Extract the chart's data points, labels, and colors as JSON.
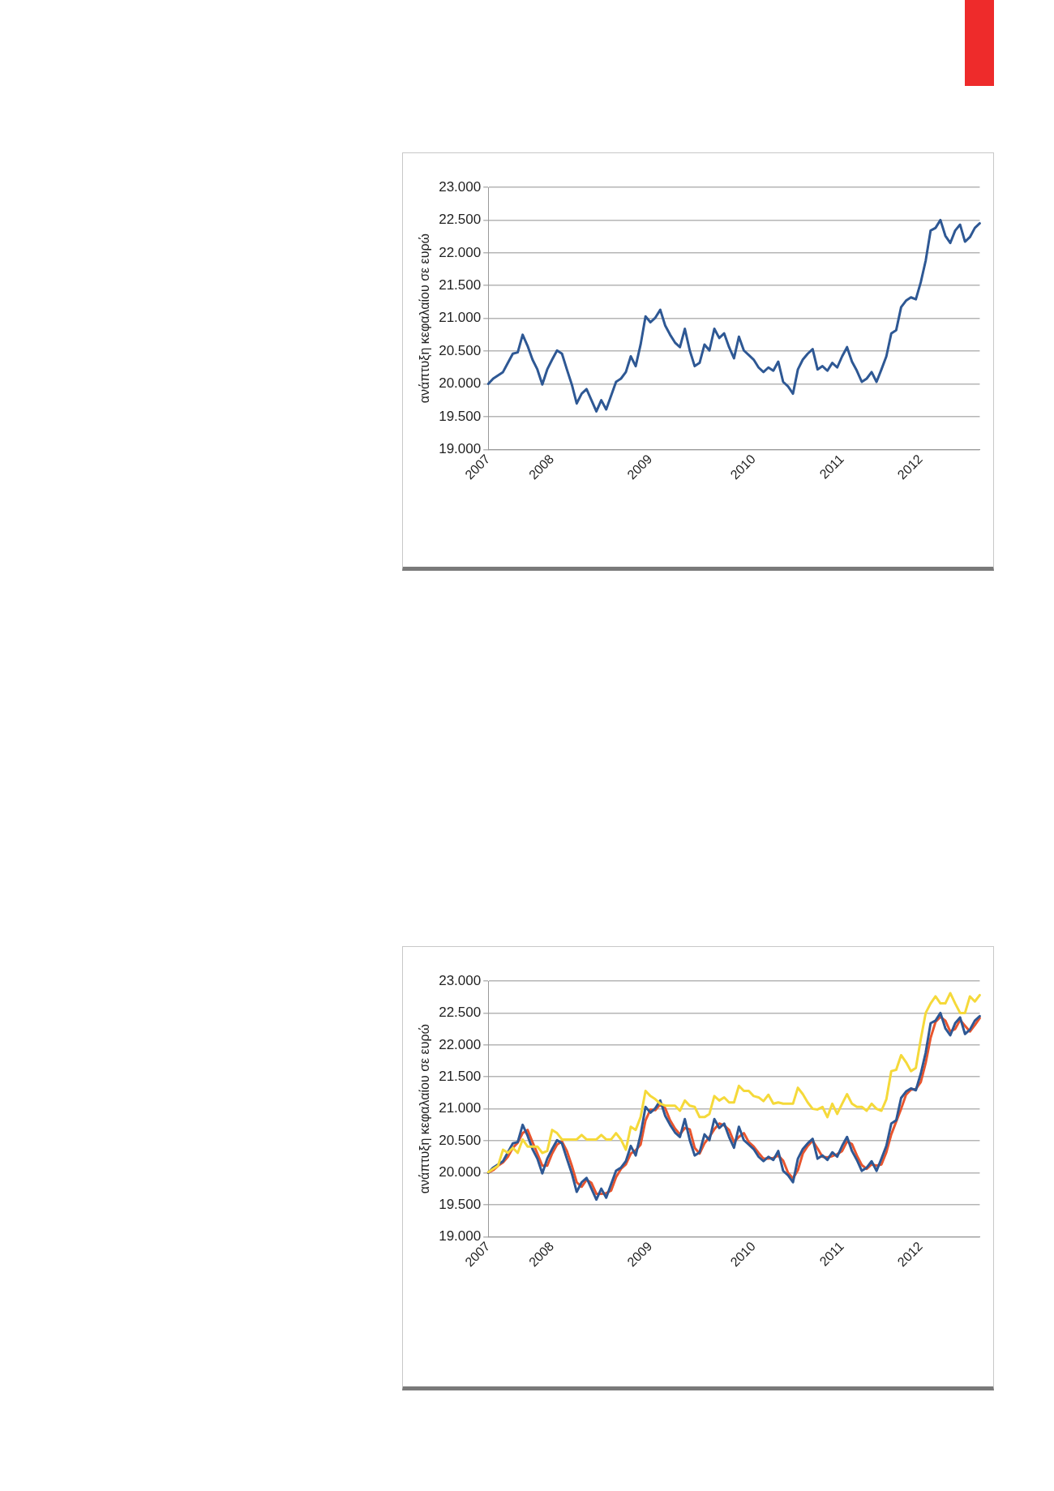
{
  "chart_data": [
    {
      "type": "line",
      "ylabel": "ανάπτυξη κεφαλαίου σε ευρώ",
      "categories": [
        "2007",
        null,
        null,
        null,
        null,
        null,
        null,
        null,
        null,
        null,
        null,
        null,
        null,
        "2008",
        null,
        null,
        null,
        null,
        null,
        null,
        null,
        null,
        null,
        null,
        null,
        null,
        null,
        null,
        null,
        null,
        null,
        null,
        null,
        "2009",
        null,
        null,
        null,
        null,
        null,
        null,
        null,
        null,
        null,
        null,
        null,
        null,
        null,
        null,
        null,
        null,
        null,
        null,
        null,
        null,
        "2010",
        null,
        null,
        null,
        null,
        null,
        null,
        null,
        null,
        null,
        null,
        null,
        null,
        null,
        null,
        null,
        null,
        null,
        "2011",
        null,
        null,
        null,
        null,
        null,
        null,
        null,
        null,
        null,
        null,
        null,
        null,
        null,
        null,
        null,
        "2012",
        null,
        null,
        null,
        null,
        null,
        null,
        null,
        null,
        null,
        null,
        null,
        null
      ],
      "series": [
        {
          "color": "#2e5894",
          "values": [
            20000,
            20080,
            20130,
            20180,
            20320,
            20460,
            20480,
            20750,
            20580,
            20370,
            20220,
            19990,
            20220,
            20370,
            20510,
            20460,
            20220,
            19990,
            19700,
            19850,
            19920,
            19750,
            19580,
            19750,
            19610,
            19820,
            20030,
            20080,
            20180,
            20420,
            20270,
            20600,
            21030,
            20940,
            21010,
            21130,
            20890,
            20750,
            20630,
            20560,
            20840,
            20510,
            20270,
            20320,
            20600,
            20510,
            20840,
            20700,
            20770,
            20560,
            20390,
            20720,
            20510,
            20440,
            20370,
            20250,
            20180,
            20250,
            20200,
            20340,
            20030,
            19960,
            19850,
            20220,
            20370,
            20460,
            20530,
            20220,
            20270,
            20200,
            20320,
            20250,
            20420,
            20560,
            20340,
            20200,
            20030,
            20080,
            20180,
            20030,
            20220,
            20420,
            20770,
            20820,
            21170,
            21270,
            21320,
            21290,
            21550,
            21880,
            22340,
            22380,
            22500,
            22260,
            22150,
            22340,
            22430,
            22170,
            22240,
            22380,
            22450
          ]
        }
      ],
      "ylim": [
        19000,
        23000
      ],
      "yticks": [
        {
          "value": 19000,
          "label": "19.000"
        },
        {
          "value": 19500,
          "label": "19.500"
        },
        {
          "value": 20000,
          "label": "20.000"
        },
        {
          "value": 20500,
          "label": "20.500"
        },
        {
          "value": 21000,
          "label": "21.000"
        },
        {
          "value": 21500,
          "label": "21.500"
        },
        {
          "value": 22000,
          "label": "22.000"
        },
        {
          "value": 22500,
          "label": "22.500"
        },
        {
          "value": 23000,
          "label": "23.000"
        }
      ],
      "grid": "y",
      "marker": "none",
      "line_style": "solid"
    },
    {
      "type": "line",
      "ylabel": "ανάπτυξη κεφαλαίου σε ευρώ",
      "categories": [
        "2007",
        null,
        null,
        null,
        null,
        null,
        null,
        null,
        null,
        null,
        null,
        null,
        null,
        "2008",
        null,
        null,
        null,
        null,
        null,
        null,
        null,
        null,
        null,
        null,
        null,
        null,
        null,
        null,
        null,
        null,
        null,
        null,
        null,
        "2009",
        null,
        null,
        null,
        null,
        null,
        null,
        null,
        null,
        null,
        null,
        null,
        null,
        null,
        null,
        null,
        null,
        null,
        null,
        null,
        null,
        "2010",
        null,
        null,
        null,
        null,
        null,
        null,
        null,
        null,
        null,
        null,
        null,
        null,
        null,
        null,
        null,
        null,
        null,
        "2011",
        null,
        null,
        null,
        null,
        null,
        null,
        null,
        null,
        null,
        null,
        null,
        null,
        null,
        null,
        null,
        "2012",
        null,
        null,
        null,
        null,
        null,
        null,
        null,
        null,
        null,
        null,
        null,
        null
      ],
      "series": [
        {
          "color": "#f5d93a",
          "values": [
            20010,
            20060,
            20110,
            20360,
            20310,
            20390,
            20310,
            20520,
            20410,
            20410,
            20410,
            20310,
            20340,
            20670,
            20620,
            20520,
            20520,
            20520,
            20520,
            20590,
            20520,
            20520,
            20520,
            20590,
            20520,
            20520,
            20620,
            20520,
            20360,
            20720,
            20670,
            20870,
            21280,
            21200,
            21150,
            21080,
            21050,
            21050,
            21050,
            20970,
            21130,
            21050,
            21030,
            20870,
            20870,
            20920,
            21200,
            21130,
            21180,
            21100,
            21100,
            21360,
            21280,
            21280,
            21200,
            21180,
            21120,
            21220,
            21080,
            21100,
            21080,
            21080,
            21080,
            21330,
            21230,
            21100,
            21000,
            20990,
            21030,
            20870,
            21080,
            20920,
            21080,
            21230,
            21080,
            21030,
            21030,
            20970,
            21080,
            21000,
            20970,
            21150,
            21590,
            21610,
            21840,
            21730,
            21590,
            21640,
            22090,
            22500,
            22650,
            22760,
            22650,
            22650,
            22810,
            22650,
            22500,
            22500,
            22760,
            22680,
            22780
          ]
        },
        {
          "color": "#2e5894",
          "values": [
            20000,
            20080,
            20130,
            20180,
            20320,
            20460,
            20480,
            20750,
            20580,
            20370,
            20220,
            19990,
            20220,
            20370,
            20510,
            20460,
            20220,
            19990,
            19700,
            19850,
            19920,
            19750,
            19580,
            19750,
            19610,
            19820,
            20030,
            20080,
            20180,
            20420,
            20270,
            20600,
            21030,
            20940,
            21010,
            21130,
            20890,
            20750,
            20630,
            20560,
            20840,
            20510,
            20270,
            20320,
            20600,
            20510,
            20840,
            20700,
            20770,
            20560,
            20390,
            20720,
            20510,
            20440,
            20370,
            20250,
            20180,
            20250,
            20200,
            20340,
            20030,
            19960,
            19850,
            20220,
            20370,
            20460,
            20530,
            20220,
            20270,
            20200,
            20320,
            20250,
            20420,
            20560,
            20340,
            20200,
            20030,
            20080,
            20180,
            20030,
            20220,
            20420,
            20770,
            20820,
            21170,
            21270,
            21320,
            21290,
            21550,
            21880,
            22340,
            22380,
            22500,
            22260,
            22150,
            22340,
            22430,
            22170,
            22240,
            22380,
            22450
          ]
        },
        {
          "color": "#e8552e",
          "values": [
            20000,
            20040,
            20110,
            20160,
            20250,
            20390,
            20470,
            20620,
            20670,
            20480,
            20300,
            20110,
            20110,
            20300,
            20440,
            20490,
            20340,
            20110,
            19850,
            19780,
            19890,
            19840,
            19670,
            19670,
            19680,
            19720,
            19930,
            20060,
            20130,
            20300,
            20350,
            20440,
            20820,
            20990,
            20980,
            21070,
            21010,
            20820,
            20690,
            20600,
            20700,
            20680,
            20390,
            20300,
            20460,
            20560,
            20680,
            20770,
            20740,
            20670,
            20480,
            20560,
            20620,
            20480,
            20410,
            20310,
            20220,
            20220,
            20230,
            20270,
            20190,
            20000,
            19910,
            20040,
            20300,
            20420,
            20500,
            20380,
            20250,
            20240,
            20260,
            20290,
            20340,
            20490,
            20450,
            20270,
            20120,
            20060,
            20130,
            20110,
            20130,
            20320,
            20600,
            20800,
            21000,
            21220,
            21300,
            21310,
            21420,
            21720,
            22110,
            22360,
            22440,
            22380,
            22210,
            22250,
            22390,
            22300,
            22210,
            22310,
            22420
          ]
        }
      ],
      "ylim": [
        19000,
        23000
      ],
      "yticks": [
        {
          "value": 19000,
          "label": "19.000"
        },
        {
          "value": 19500,
          "label": "19.500"
        },
        {
          "value": 20000,
          "label": "20.000"
        },
        {
          "value": 20500,
          "label": "20.500"
        },
        {
          "value": 21000,
          "label": "21.000"
        },
        {
          "value": 21500,
          "label": "21.500"
        },
        {
          "value": 22000,
          "label": "22.000"
        },
        {
          "value": 22500,
          "label": "22.500"
        },
        {
          "value": 23000,
          "label": "23.000"
        }
      ],
      "grid": "y",
      "marker": "none",
      "line_style": "solid"
    }
  ]
}
